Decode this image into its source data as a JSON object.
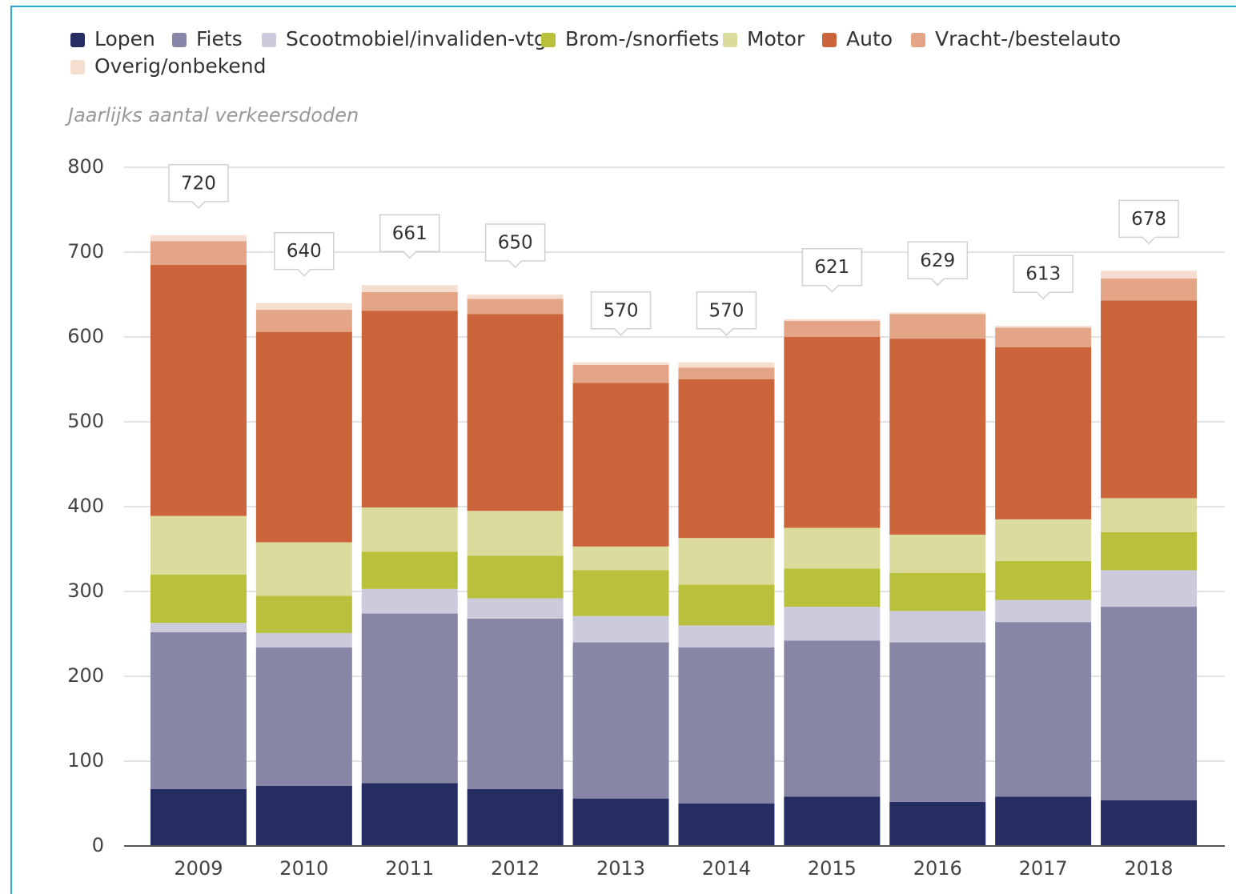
{
  "chart_data": {
    "type": "stacked_bar",
    "subtitle": "Jaarlijks aantal verkeersdoden",
    "categories": [
      "2009",
      "2010",
      "2011",
      "2012",
      "2013",
      "2014",
      "2015",
      "2016",
      "2017",
      "2018"
    ],
    "series": [
      {
        "name": "Lopen",
        "color": "#252d62",
        "values": [
          67,
          71,
          74,
          67,
          56,
          50,
          58,
          52,
          58,
          54
        ]
      },
      {
        "name": "Fiets",
        "color": "#8786a6",
        "values": [
          185,
          163,
          200,
          201,
          184,
          184,
          184,
          188,
          206,
          228
        ]
      },
      {
        "name": "Scootmobiel/invaliden-vtg",
        "color": "#cccbdb",
        "values": [
          11,
          17,
          29,
          24,
          31,
          26,
          40,
          37,
          26,
          43
        ]
      },
      {
        "name": "Brom-/snorfiets",
        "color": "#b9c03c",
        "values": [
          57,
          44,
          44,
          50,
          54,
          48,
          45,
          45,
          46,
          45
        ]
      },
      {
        "name": "Motor",
        "color": "#dcdb9e",
        "values": [
          69,
          63,
          52,
          53,
          28,
          55,
          48,
          45,
          49,
          40
        ]
      },
      {
        "name": "Auto",
        "color": "#cb643a",
        "values": [
          296,
          248,
          232,
          232,
          193,
          187,
          225,
          231,
          203,
          233
        ]
      },
      {
        "name": "Vracht-/bestelauto",
        "color": "#e3a585",
        "values": [
          28,
          26,
          22,
          18,
          21,
          14,
          19,
          29,
          23,
          26
        ]
      },
      {
        "name": "Overig/onbekend",
        "color": "#f5ddd0",
        "values": [
          7,
          8,
          8,
          5,
          3,
          6,
          2,
          2,
          2,
          9
        ]
      }
    ],
    "totals": [
      720,
      640,
      661,
      650,
      570,
      570,
      621,
      629,
      613,
      678
    ],
    "ylim": [
      0,
      800
    ],
    "yticks": [
      0,
      100,
      200,
      300,
      400,
      500,
      600,
      700,
      800
    ],
    "grid": true
  }
}
